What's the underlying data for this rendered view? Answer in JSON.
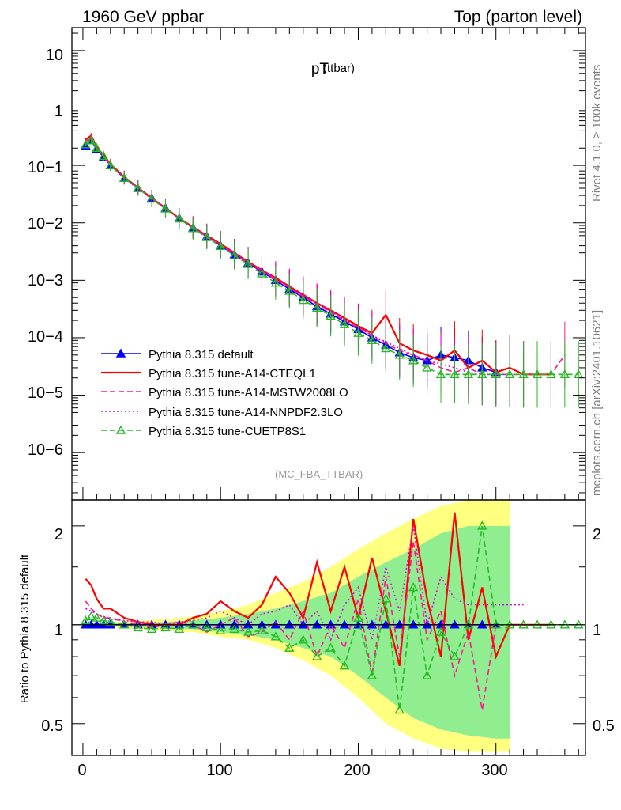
{
  "header": {
    "left": "1960 GeV ppbar",
    "right": "Top (parton level)"
  },
  "side_labels": {
    "rivet": "Rivet 4.1.0, ≥ 100k events",
    "mcplots": "mcplots.cern.ch [arXiv:2401.10621]"
  },
  "chart_data": {
    "type": "line",
    "title_main": "pT",
    "title_sub": "(ttbar)",
    "analysis_tag": "(MC_FBA_TTBAR)",
    "xlabel": "",
    "xlim": [
      -8,
      365
    ],
    "x_ticks": [
      "0",
      "100",
      "200",
      "300"
    ],
    "upper": {
      "ylabel": "",
      "yscale": "log",
      "ylim": [
        1.5e-07,
        25
      ],
      "y_ticks": [
        "10",
        "1",
        "10−1",
        "10−2",
        "10−3",
        "10−4",
        "10−5",
        "10−6"
      ]
    },
    "lower": {
      "ylabel": "Ratio to Pythia 8.315 default",
      "yscale": "log",
      "ylim": [
        0.4,
        2.4
      ],
      "y_ticks": [
        "2",
        "1",
        "0.5"
      ]
    },
    "legend_position": "center-left",
    "series": [
      {
        "name": "Pythia 8.315 default",
        "color": "#0000ff",
        "style": "solid",
        "marker": "filled-triangle",
        "x": [
          2,
          6,
          10,
          15,
          20,
          30,
          40,
          50,
          60,
          70,
          80,
          90,
          100,
          110,
          120,
          130,
          140,
          150,
          160,
          170,
          180,
          190,
          200,
          210,
          220,
          230,
          240,
          250,
          260,
          270,
          280,
          290,
          300
        ],
        "y": [
          0.22,
          0.27,
          0.19,
          0.14,
          0.1,
          0.06,
          0.04,
          0.027,
          0.018,
          0.012,
          0.0082,
          0.0058,
          0.004,
          0.0028,
          0.002,
          0.0014,
          0.001,
          0.0007,
          0.0005,
          0.00035,
          0.00026,
          0.00019,
          0.00014,
          0.0001,
          7.5e-05,
          5.5e-05,
          4.5e-05,
          4e-05,
          5e-05,
          4.5e-05,
          4e-05,
          3e-05,
          2.5e-05
        ],
        "ratio": [
          1.0,
          1.0,
          1.0,
          1.0,
          1.0,
          1.0,
          1.0,
          1.0,
          1.0,
          1.0,
          1.0,
          1.0,
          1.0,
          1.0,
          1.0,
          1.0,
          1.0,
          1.0,
          1.0,
          1.0,
          1.0,
          1.0,
          1.0,
          1.0,
          1.0,
          1.0,
          1.0,
          1.0,
          1.0,
          1.0,
          1.0,
          1.0,
          1.0
        ]
      },
      {
        "name": "Pythia 8.315 tune-A14-CTEQL1",
        "color": "#ff0000",
        "style": "solid",
        "marker": "none",
        "x": [
          2,
          6,
          10,
          15,
          20,
          30,
          40,
          50,
          60,
          70,
          80,
          90,
          100,
          110,
          120,
          130,
          140,
          150,
          160,
          170,
          180,
          190,
          200,
          210,
          220,
          230,
          240,
          250,
          260,
          270,
          280,
          290,
          300,
          310,
          320,
          330,
          340
        ],
        "y": [
          0.28,
          0.33,
          0.21,
          0.15,
          0.105,
          0.063,
          0.041,
          0.027,
          0.018,
          0.012,
          0.0084,
          0.006,
          0.0043,
          0.003,
          0.0021,
          0.0015,
          0.0011,
          0.00078,
          0.00056,
          0.0004,
          0.0003,
          0.00022,
          0.00016,
          0.00012,
          0.00025,
          8e-05,
          6e-05,
          5e-05,
          4e-05,
          6e-05,
          3e-05,
          4e-05,
          2.5e-05,
          3e-05,
          2.3e-05,
          2.3e-05,
          2.3e-05
        ],
        "ratio": [
          1.38,
          1.32,
          1.2,
          1.12,
          1.12,
          1.05,
          1.02,
          1.0,
          1.0,
          1.0,
          1.05,
          1.08,
          1.18,
          1.1,
          1.05,
          1.15,
          1.4,
          1.25,
          1.05,
          1.55,
          1.1,
          1.5,
          1.05,
          1.6,
          1.1,
          0.75,
          2.1,
          1.2,
          0.8,
          2.2,
          0.9,
          1.3,
          0.8,
          1.0,
          1.0,
          1.0,
          1.0
        ]
      },
      {
        "name": "Pythia 8.315 tune-A14-MSTW2008LO",
        "color": "#ff1493",
        "style": "dashed",
        "marker": "none",
        "x": [
          2,
          6,
          10,
          15,
          20,
          30,
          40,
          50,
          60,
          70,
          80,
          90,
          100,
          110,
          120,
          130,
          140,
          150,
          160,
          170,
          180,
          190,
          200,
          210,
          220,
          230,
          240,
          250,
          260,
          270,
          280,
          290,
          300,
          310,
          320,
          330,
          340,
          350
        ],
        "y": [
          0.26,
          0.3,
          0.2,
          0.145,
          0.102,
          0.061,
          0.04,
          0.026,
          0.0175,
          0.0118,
          0.0081,
          0.0057,
          0.0041,
          0.0029,
          0.002,
          0.00145,
          0.00102,
          0.00075,
          0.00052,
          0.00038,
          0.00028,
          0.0002,
          0.00015,
          0.00011,
          8e-05,
          6e-05,
          5e-05,
          4e-05,
          3e-05,
          2.5e-05,
          3e-05,
          2.3e-05,
          2.3e-05,
          2.3e-05,
          2.3e-05,
          2.3e-05,
          2.3e-05,
          5e-05
        ],
        "ratio": [
          1.18,
          1.12,
          1.08,
          1.05,
          1.05,
          1.02,
          1.0,
          0.98,
          1.0,
          1.02,
          1.0,
          0.95,
          1.0,
          1.05,
          0.92,
          0.95,
          1.02,
          0.9,
          1.1,
          0.8,
          1.0,
          0.85,
          1.2,
          0.7,
          1.4,
          0.8,
          1.8,
          0.9,
          1.1,
          0.7,
          0.95,
          0.55,
          1.0,
          1.0,
          1.0,
          1.0,
          1.0,
          1.0
        ]
      },
      {
        "name": "Pythia 8.315 tune-A14-NNPDF2.3LO",
        "color": "#dd00dd",
        "style": "dotted",
        "marker": "none",
        "x": [
          2,
          6,
          10,
          15,
          20,
          30,
          40,
          50,
          60,
          70,
          80,
          90,
          100,
          110,
          120,
          130,
          140,
          150,
          160,
          170,
          180,
          190,
          200,
          210,
          220,
          230,
          240,
          250,
          260,
          270,
          280,
          290,
          300,
          310,
          320
        ],
        "y": [
          0.25,
          0.29,
          0.2,
          0.14,
          0.1,
          0.062,
          0.041,
          0.027,
          0.0178,
          0.012,
          0.0083,
          0.0059,
          0.0042,
          0.003,
          0.0021,
          0.0015,
          0.00106,
          0.00076,
          0.00054,
          0.0004,
          0.00029,
          0.00021,
          0.00015,
          0.00011,
          8.5e-05,
          6.5e-05,
          5e-05,
          4e-05,
          3.5e-05,
          3e-05,
          2.5e-05,
          2.3e-05,
          2.3e-05,
          2.3e-05,
          2.3e-05
        ],
        "ratio": [
          1.12,
          1.1,
          1.08,
          1.06,
          1.04,
          1.03,
          1.02,
          1.02,
          1.0,
          1.02,
          1.03,
          1.05,
          1.1,
          1.05,
          1.0,
          1.08,
          1.1,
          1.15,
          1.0,
          1.1,
          0.9,
          1.15,
          1.3,
          0.9,
          1.5,
          1.1,
          2.0,
          1.0,
          1.4,
          1.2,
          1.15,
          1.15,
          1.15,
          1.15,
          1.15
        ]
      },
      {
        "name": "Pythia 8.315 tune-CUETP8S1",
        "color": "#22bb22",
        "style": "dashed",
        "marker": "open-triangle",
        "x": [
          2,
          6,
          10,
          15,
          20,
          30,
          40,
          50,
          60,
          70,
          80,
          90,
          100,
          110,
          120,
          130,
          140,
          150,
          160,
          170,
          180,
          190,
          200,
          210,
          220,
          230,
          240,
          250,
          260,
          270,
          280,
          290,
          300,
          310,
          320,
          330,
          340,
          350,
          360
        ],
        "y": [
          0.23,
          0.27,
          0.2,
          0.145,
          0.1,
          0.06,
          0.04,
          0.026,
          0.0175,
          0.0118,
          0.008,
          0.0056,
          0.0039,
          0.0027,
          0.0019,
          0.0013,
          0.0009,
          0.00065,
          0.00045,
          0.00033,
          0.00024,
          0.00017,
          0.00012,
          9e-05,
          6.5e-05,
          5e-05,
          4e-05,
          3e-05,
          2.3e-05,
          2.3e-05,
          2.3e-05,
          2.3e-05,
          2.3e-05,
          2.3e-05,
          2.3e-05,
          2.3e-05,
          2.3e-05,
          2.3e-05,
          2.3e-05
        ],
        "ratio": [
          1.03,
          1.06,
          1.05,
          1.03,
          1.02,
          1.0,
          0.98,
          0.97,
          0.98,
          0.97,
          1.0,
          0.98,
          0.96,
          0.97,
          0.95,
          0.96,
          0.92,
          0.85,
          0.9,
          0.8,
          0.85,
          0.75,
          1.05,
          0.7,
          1.2,
          0.55,
          1.3,
          0.7,
          0.95,
          0.8,
          1.0,
          2.0,
          1.0,
          1.0,
          1.0,
          1.0,
          1.0,
          1.0,
          1.0
        ]
      }
    ],
    "bands": [
      {
        "name": "stat-yellow",
        "color": "#ffff80",
        "x": [
          2,
          20,
          40,
          60,
          80,
          100,
          120,
          140,
          160,
          180,
          200,
          220,
          240,
          260,
          280,
          300,
          310
        ],
        "lo": [
          0.99,
          0.98,
          0.97,
          0.96,
          0.95,
          0.92,
          0.9,
          0.85,
          0.78,
          0.7,
          0.6,
          0.5,
          0.45,
          0.42,
          0.41,
          0.41,
          0.41
        ],
        "hi": [
          1.01,
          1.02,
          1.03,
          1.04,
          1.06,
          1.1,
          1.15,
          1.25,
          1.35,
          1.5,
          1.7,
          1.9,
          2.1,
          2.3,
          2.4,
          2.4,
          2.4
        ]
      },
      {
        "name": "stat-green",
        "color": "#90ee90",
        "x": [
          2,
          20,
          40,
          60,
          80,
          100,
          120,
          140,
          160,
          180,
          200,
          220,
          240,
          260,
          280,
          300,
          310
        ],
        "lo": [
          0.995,
          0.99,
          0.985,
          0.98,
          0.97,
          0.95,
          0.93,
          0.9,
          0.85,
          0.8,
          0.7,
          0.6,
          0.52,
          0.48,
          0.46,
          0.45,
          0.45
        ],
        "hi": [
          1.005,
          1.01,
          1.015,
          1.02,
          1.03,
          1.05,
          1.08,
          1.12,
          1.18,
          1.25,
          1.4,
          1.55,
          1.7,
          1.9,
          2.0,
          2.0,
          2.0
        ]
      }
    ]
  }
}
